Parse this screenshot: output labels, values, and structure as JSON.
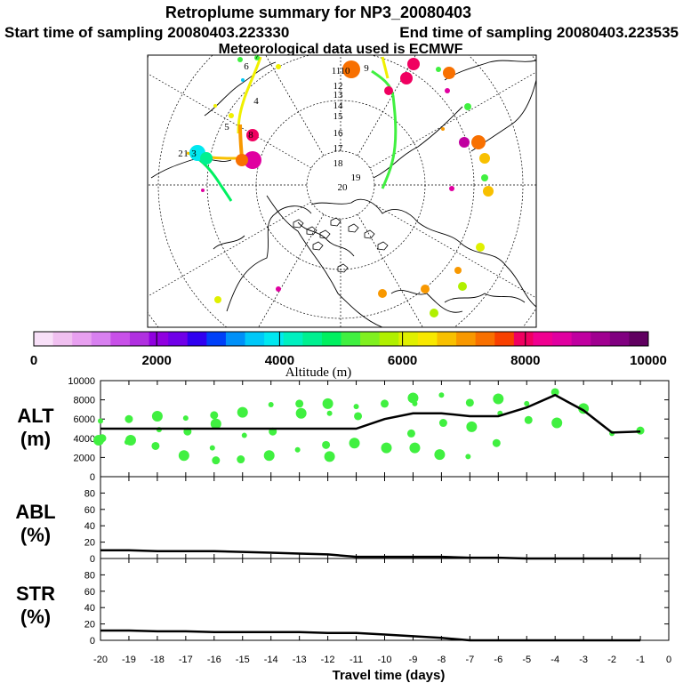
{
  "title": "Retroplume summary for NP3_20080403",
  "start_label": "Start time of sampling 20080403.223330",
  "end_label": "End time of sampling 20080403.223535",
  "met_label": "Meteorological data used is ECMWF",
  "colorbar": {
    "label": "Altitude (m)",
    "ticks": [
      "0",
      "2000",
      "4000",
      "6000",
      "8000",
      "10000"
    ],
    "colors": [
      "#f8e0f8",
      "#f0c0f0",
      "#e8a0f0",
      "#d880f0",
      "#c850e8",
      "#b030e0",
      "#9000e0",
      "#7000e8",
      "#3000f0",
      "#0040f8",
      "#0090f8",
      "#00c8f8",
      "#00e8f0",
      "#00f0c0",
      "#00f090",
      "#00f060",
      "#40f040",
      "#80f020",
      "#b0f000",
      "#e0f000",
      "#f8e800",
      "#f8c000",
      "#f89800",
      "#f87000",
      "#f84000",
      "#f00060",
      "#f00090",
      "#e000a0",
      "#c000a0",
      "#a00090",
      "#800080",
      "#600060"
    ]
  },
  "map_numbers": [
    "1",
    "2",
    "3",
    "4",
    "5",
    "6",
    "7",
    "8",
    "9",
    "10",
    "11",
    "12",
    "13",
    "14",
    "15",
    "16",
    "17",
    "18",
    "19",
    "20"
  ],
  "chart_data": [
    {
      "type": "scatter",
      "name": "ALT",
      "ylabel_line1": "ALT",
      "ylabel_line2": "(m)",
      "x": [
        -20,
        -19,
        -18,
        -17,
        -16,
        -15,
        -14,
        -13,
        -12,
        -11,
        -10,
        -9,
        -8,
        -7,
        -6,
        -5,
        -4,
        -3,
        -2,
        -1
      ],
      "median_line": [
        5000,
        5000,
        5000,
        5000,
        5000,
        5000,
        5000,
        5000,
        5000,
        5000,
        6000,
        6600,
        6600,
        6300,
        6300,
        7200,
        8500,
        6900,
        4600,
        4700
      ],
      "clusters": [
        [
          5800,
          4000,
          3800
        ],
        [
          6000,
          3800,
          3600
        ],
        [
          6300,
          4900,
          3200
        ],
        [
          6100,
          4700,
          2200
        ],
        [
          6400,
          5500,
          3000,
          1700
        ],
        [
          6700,
          4300,
          1800
        ],
        [
          7500,
          4700,
          2200
        ],
        [
          7600,
          6600,
          2800
        ],
        [
          7600,
          6600,
          3300,
          2100
        ],
        [
          7300,
          6300,
          3500
        ],
        [
          7600,
          3000
        ],
        [
          8200,
          7600,
          4500,
          3000
        ],
        [
          8500,
          5600,
          2300
        ],
        [
          7700,
          5200,
          2100
        ],
        [
          8100,
          6600,
          3500
        ],
        [
          7600,
          5900
        ],
        [
          8800,
          5600
        ],
        [
          7100
        ],
        [
          4500
        ],
        [
          4800
        ]
      ],
      "ylim": [
        0,
        10000
      ],
      "yticks": [
        "0",
        "2000",
        "4000",
        "6000",
        "8000",
        "10000"
      ]
    },
    {
      "type": "line",
      "name": "ABL",
      "ylabel_line1": "ABL",
      "ylabel_line2": "(%)",
      "x": [
        -20,
        -19,
        -18,
        -17,
        -16,
        -15,
        -14,
        -13,
        -12,
        -11,
        -10,
        -9,
        -8,
        -7,
        -6,
        -5,
        -4,
        -3,
        -2,
        -1
      ],
      "values": [
        10,
        10,
        9,
        9,
        9,
        8,
        7,
        6,
        5,
        2,
        2,
        2,
        2,
        1,
        1,
        0,
        0,
        0,
        0,
        0
      ],
      "ylim": [
        0,
        100
      ],
      "yticks": [
        "0",
        "20",
        "40",
        "60",
        "80"
      ]
    },
    {
      "type": "line",
      "name": "STR",
      "ylabel_line1": "STR",
      "ylabel_line2": "(%)",
      "x": [
        -20,
        -19,
        -18,
        -17,
        -16,
        -15,
        -14,
        -13,
        -12,
        -11,
        -10,
        -9,
        -8,
        -7,
        -6,
        -5,
        -4,
        -3,
        -2,
        -1
      ],
      "values": [
        12,
        12,
        11,
        11,
        10,
        10,
        10,
        10,
        9,
        9,
        7,
        5,
        3,
        0,
        0,
        0,
        0,
        0,
        0,
        0
      ],
      "ylim": [
        0,
        100
      ],
      "yticks": [
        "0",
        "20",
        "40",
        "60",
        "80"
      ]
    }
  ],
  "xaxis": {
    "label": "Travel time (days)",
    "ticks": [
      "-20",
      "-19",
      "-18",
      "-17",
      "-16",
      "-15",
      "-14",
      "-13",
      "-12",
      "-11",
      "-10",
      "-9",
      "-8",
      "-7",
      "-6",
      "-5",
      "-4",
      "-3",
      "-2",
      "-1",
      "0"
    ]
  }
}
